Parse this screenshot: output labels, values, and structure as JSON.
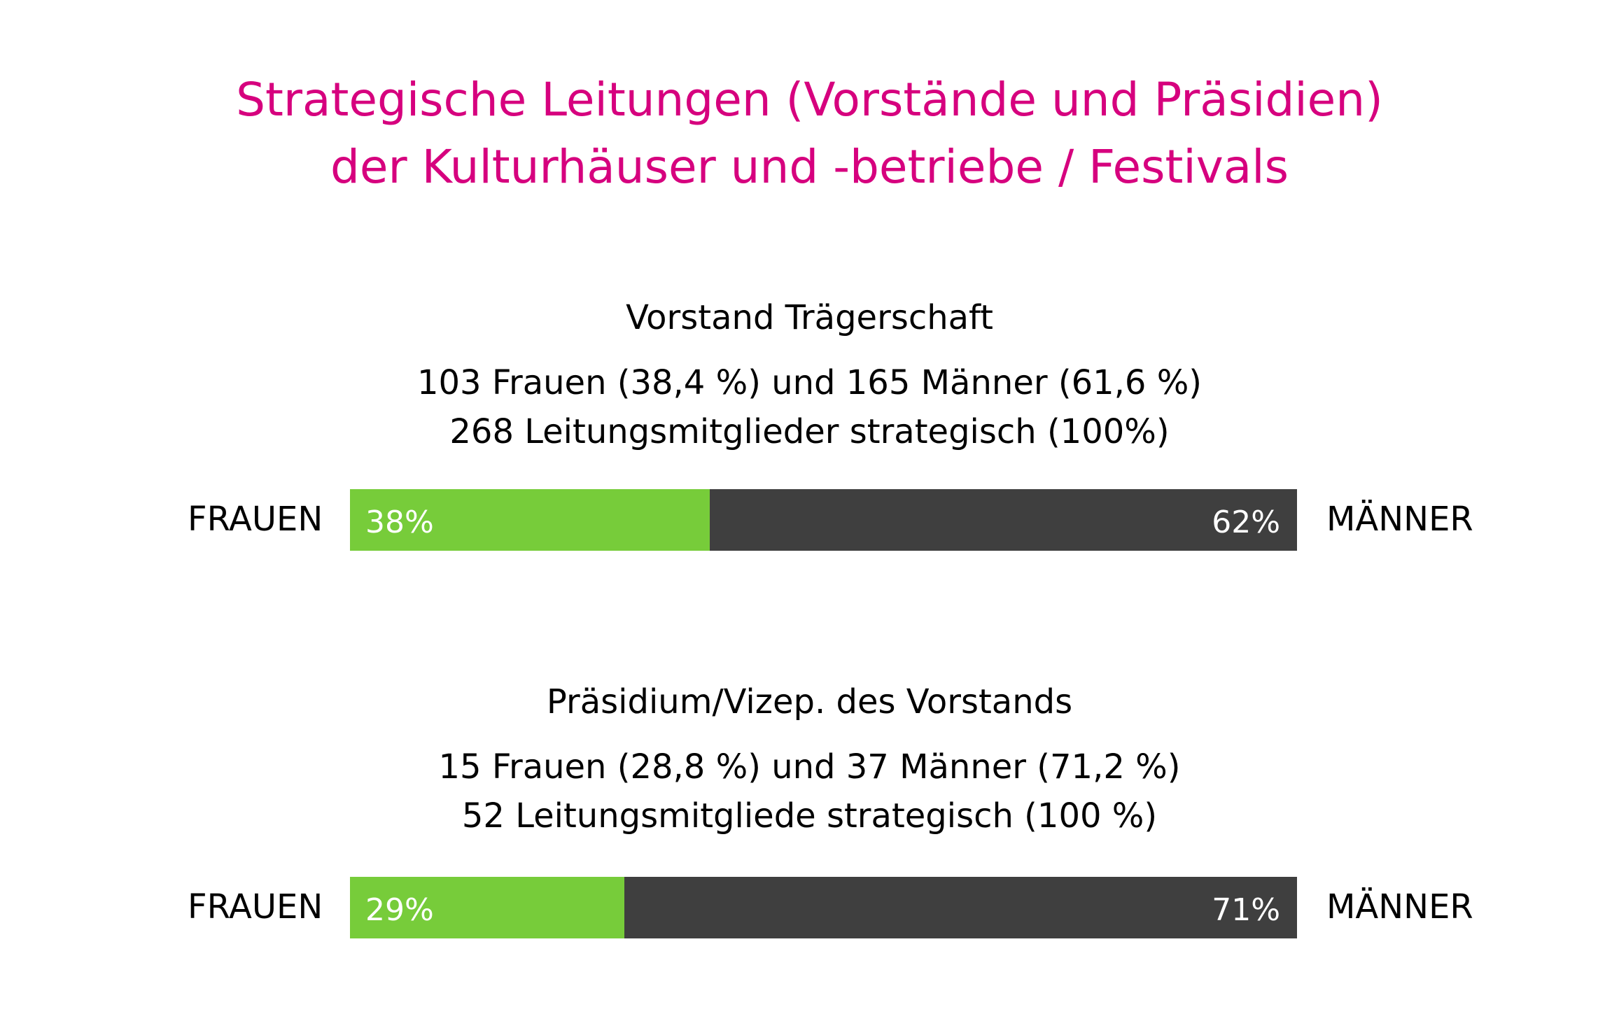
{
  "title_lines": [
    "Strategische Leitungen (Vorstände und Präsidien)",
    "der Kulturhäuser und -betriebe / Festivals"
  ],
  "colors": {
    "title": "#d6007e",
    "women": "#77cc3a",
    "men": "#3f3f3f"
  },
  "chart_data": [
    {
      "type": "bar",
      "orientation": "horizontal-stacked",
      "title": "Vorstand Trägerschaft",
      "summary_lines": [
        "103 Frauen (38,4 %) und 165 Männer (61,6 %)",
        "268 Leitungsmitglieder strategisch (100%)"
      ],
      "left_label": "FRAUEN",
      "right_label": "MÄNNER",
      "segments": [
        {
          "key": "women",
          "value": 38,
          "label": "38%"
        },
        {
          "key": "men",
          "value": 62,
          "label": "62%"
        }
      ]
    },
    {
      "type": "bar",
      "orientation": "horizontal-stacked",
      "title": "Präsidium/Vizep. des Vorstands",
      "summary_lines": [
        "15 Frauen (28,8 %) und 37 Männer (71,2 %)",
        "52 Leitungsmitgliede strategisch (100 %)"
      ],
      "left_label": "FRAUEN",
      "right_label": "MÄNNER",
      "segments": [
        {
          "key": "women",
          "value": 29,
          "label": "29%"
        },
        {
          "key": "men",
          "value": 71,
          "label": "71%"
        }
      ]
    }
  ]
}
